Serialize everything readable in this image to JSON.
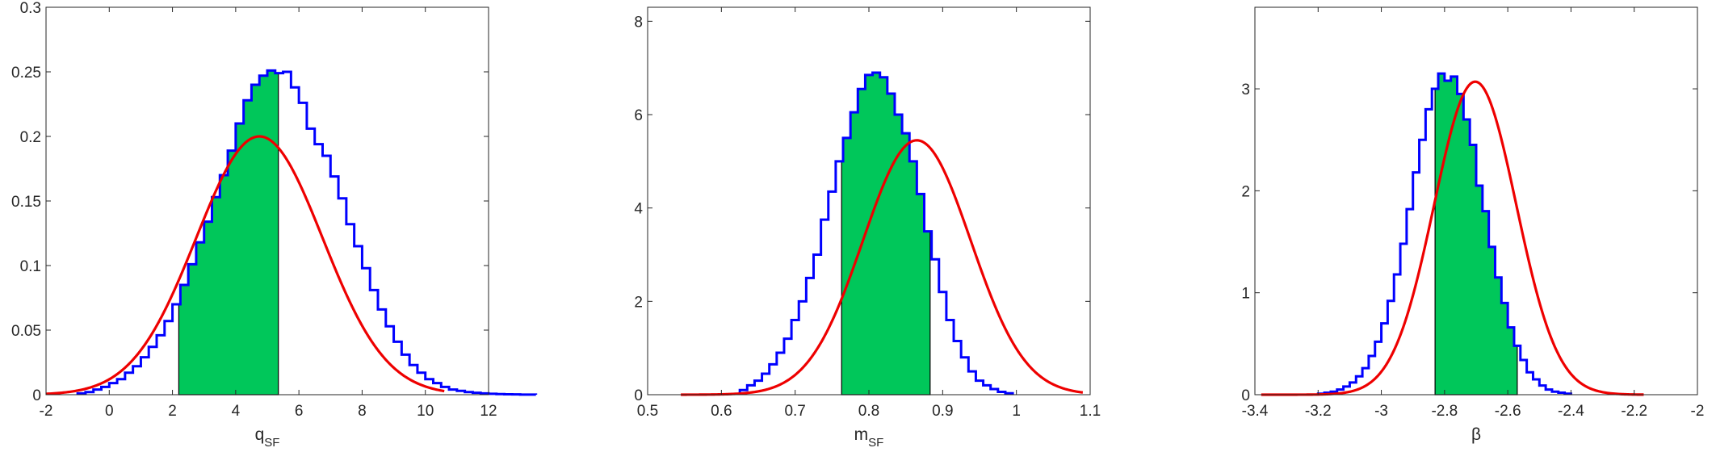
{
  "chart_data": [
    {
      "type": "histogram",
      "xlabel": "q",
      "xlabel_sub": "SF",
      "xlim": [
        -2,
        12
      ],
      "ylim": [
        0,
        0.3
      ],
      "xticks": [
        "-2",
        "0",
        "2",
        "4",
        "6",
        "8",
        "10",
        "12"
      ],
      "yticks": [
        "0",
        "0.05",
        "0.1",
        "0.15",
        "0.2",
        "0.25",
        "0.3"
      ],
      "hist": {
        "bin_start": -1.0,
        "bin_width": 0.25,
        "values": [
          0.001,
          0.002,
          0.004,
          0.006,
          0.009,
          0.012,
          0.017,
          0.022,
          0.029,
          0.037,
          0.046,
          0.057,
          0.07,
          0.085,
          0.101,
          0.118,
          0.134,
          0.153,
          0.17,
          0.189,
          0.21,
          0.228,
          0.24,
          0.247,
          0.251,
          0.249,
          0.25,
          0.238,
          0.226,
          0.206,
          0.194,
          0.185,
          0.169,
          0.152,
          0.132,
          0.115,
          0.098,
          0.081,
          0.066,
          0.053,
          0.041,
          0.031,
          0.023,
          0.017,
          0.012,
          0.009,
          0.006,
          0.004,
          0.003,
          0.002,
          0.0015,
          0.001,
          0.0007,
          0.0005,
          0.0003,
          0.0002,
          0.0001,
          0.0001
        ]
      },
      "shaded_interval": [
        2.2,
        5.35
      ],
      "fit_curve": {
        "mean": 4.75,
        "std": 2.0,
        "amplitude": 0.2,
        "x_range": [
          -2,
          10.6
        ]
      },
      "colors": {
        "histogram": "#0000ff",
        "fill": "#00c75a",
        "fit": "#ee0000"
      }
    },
    {
      "type": "histogram",
      "xlabel": "m",
      "xlabel_sub": "SF",
      "xlim": [
        0.5,
        1.1
      ],
      "ylim": [
        0,
        8.3
      ],
      "xticks": [
        "0.5",
        "0.6",
        "0.7",
        "0.8",
        "0.9",
        "1",
        "1.1"
      ],
      "yticks": [
        "0",
        "2",
        "4",
        "6",
        "8"
      ],
      "hist": {
        "bin_start": 0.625,
        "bin_width": 0.01,
        "values": [
          0.1,
          0.2,
          0.3,
          0.45,
          0.65,
          0.9,
          1.2,
          1.6,
          2.0,
          2.5,
          3.0,
          3.75,
          4.35,
          5.0,
          5.5,
          6.05,
          6.55,
          6.85,
          6.9,
          6.8,
          6.45,
          6.0,
          5.6,
          5.0,
          4.3,
          3.5,
          2.9,
          2.2,
          1.6,
          1.15,
          0.8,
          0.5,
          0.3,
          0.2,
          0.12,
          0.06,
          0.03
        ]
      },
      "shaded_interval": [
        0.763,
        0.883
      ],
      "fit_curve": {
        "mean": 0.865,
        "std": 0.073,
        "amplitude": 5.45,
        "x_range": [
          0.545,
          1.09
        ]
      },
      "colors": {
        "histogram": "#0000ff",
        "fill": "#00c75a",
        "fit": "#ee0000"
      }
    },
    {
      "type": "histogram",
      "xlabel": "β",
      "xlabel_sub": "",
      "xlim": [
        -3.4,
        -2.0
      ],
      "ylim": [
        0,
        3.8
      ],
      "xticks": [
        "-3.4",
        "-3.2",
        "-3",
        "-2.8",
        "-2.6",
        "-2.4",
        "-2.2",
        "-2"
      ],
      "yticks": [
        "0",
        "1",
        "2",
        "3"
      ],
      "hist": {
        "bin_start": -3.2,
        "bin_width": 0.02,
        "values": [
          0.01,
          0.02,
          0.03,
          0.05,
          0.08,
          0.12,
          0.18,
          0.26,
          0.38,
          0.52,
          0.7,
          0.92,
          1.18,
          1.48,
          1.82,
          2.18,
          2.5,
          2.8,
          3.0,
          3.15,
          3.08,
          3.12,
          2.95,
          2.7,
          2.45,
          2.05,
          1.8,
          1.45,
          1.15,
          0.9,
          0.66,
          0.48,
          0.34,
          0.22,
          0.15,
          0.09,
          0.05,
          0.03,
          0.02,
          0.01
        ]
      },
      "shaded_interval": [
        -2.83,
        -2.57
      ],
      "fit_curve": {
        "mean": -2.703,
        "std": 0.13,
        "amplitude": 3.07,
        "x_range": [
          -3.38,
          -2.17
        ]
      },
      "colors": {
        "histogram": "#0000ff",
        "fill": "#00c75a",
        "fit": "#ee0000"
      }
    }
  ]
}
